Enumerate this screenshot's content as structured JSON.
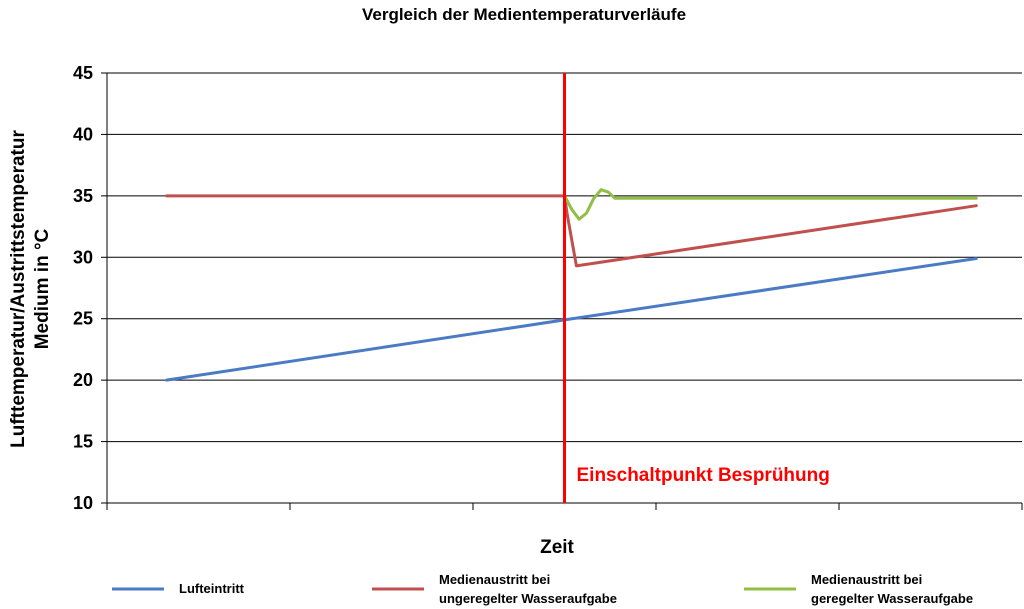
{
  "chart_data": {
    "type": "line",
    "title": "Vergleich der Medientemperaturverläufe",
    "xlabel": "Zeit",
    "ylabel": "Lufttemperatur/Austrittstemperatur Medium in °C",
    "ylim": [
      10,
      45
    ],
    "yticks": [
      10,
      15,
      20,
      25,
      30,
      35,
      40,
      45
    ],
    "xlim": [
      0,
      100
    ],
    "grid": true,
    "legend_position": "bottom",
    "annotation": {
      "text": "Einschaltpunkt Besprühung",
      "x": 50,
      "color": "#ff0000"
    },
    "series": [
      {
        "name": "Lufteintritt",
        "color": "#4a7bc4",
        "x": [
          6.5,
          50,
          95
        ],
        "y": [
          20,
          24.9,
          29.9
        ]
      },
      {
        "name": "Medienaustritt bei ungeregelter Wasseraufgabe",
        "color": "#c0504d",
        "x": [
          6.5,
          50,
          50.3,
          51.3,
          95
        ],
        "y": [
          35,
          35,
          33.5,
          29.3,
          34.2
        ]
      },
      {
        "name": "Medienaustritt bei geregelter Wasseraufgabe",
        "color": "#8fbf44",
        "x": [
          50,
          50.8,
          51.6,
          52.4,
          53.2,
          54.0,
          54.8,
          55.5,
          56.5,
          95
        ],
        "y": [
          35,
          33.9,
          33.1,
          33.6,
          34.8,
          35.5,
          35.3,
          34.8,
          34.8,
          34.8
        ]
      }
    ]
  }
}
